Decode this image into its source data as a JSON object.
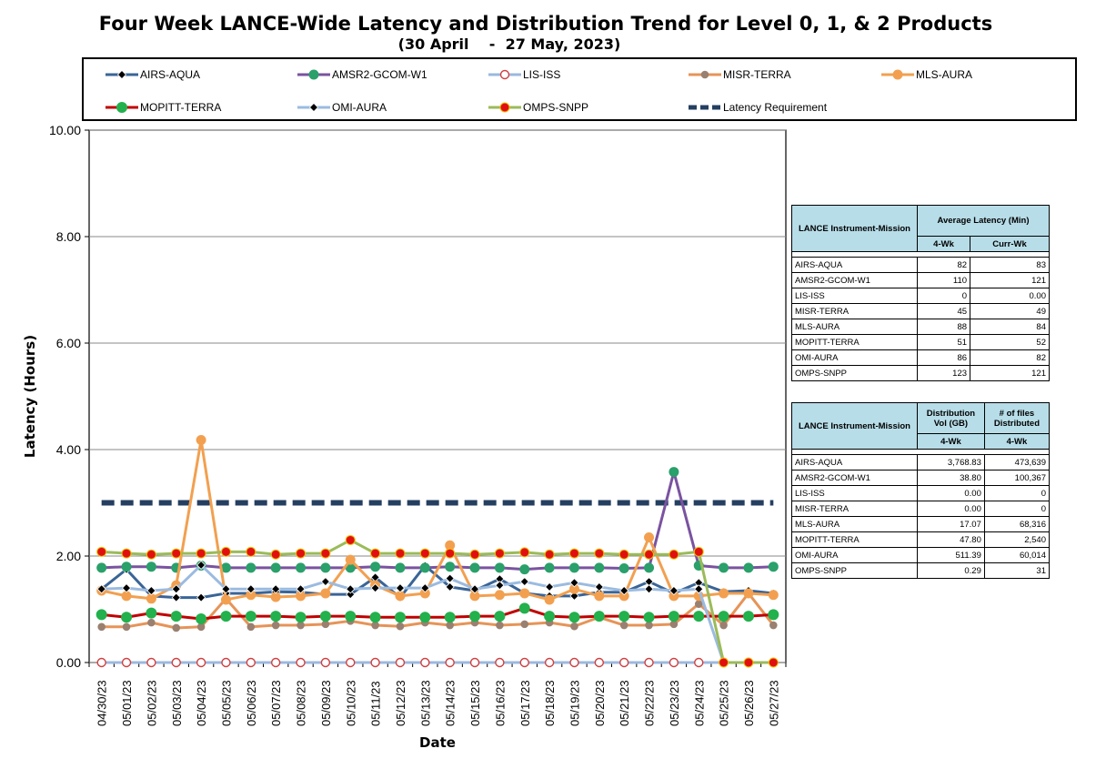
{
  "title": "Four Week LANCE-Wide Latency and Distribution Trend for Level 0, 1, & 2 Products",
  "subtitle": "(30 April    -  27 May, 2023)",
  "chart_data": {
    "type": "line",
    "xlabel": "Date",
    "ylabel": "Latency (Hours)",
    "ylim": [
      0,
      10
    ],
    "yticks": [
      "0.00",
      "2.00",
      "4.00",
      "6.00",
      "8.00",
      "10.00"
    ],
    "grid": true,
    "legend_position": "top",
    "categories": [
      "04/30/23",
      "05/01/23",
      "05/02/23",
      "05/03/23",
      "05/04/23",
      "05/05/23",
      "05/06/23",
      "05/07/23",
      "05/08/23",
      "05/09/23",
      "05/10/23",
      "05/11/23",
      "05/12/23",
      "05/13/23",
      "05/14/23",
      "05/15/23",
      "05/16/23",
      "05/17/23",
      "05/18/23",
      "05/19/23",
      "05/20/23",
      "05/21/23",
      "05/22/23",
      "05/23/23",
      "05/24/23",
      "05/25/23",
      "05/26/23",
      "05/27/23"
    ],
    "series": [
      {
        "name": "AIRS-AQUA",
        "color": "#3a6496",
        "marker": "diamond",
        "values": [
          1.38,
          1.75,
          1.25,
          1.22,
          1.22,
          1.3,
          1.3,
          1.33,
          1.32,
          1.28,
          1.28,
          1.6,
          1.22,
          1.82,
          1.42,
          1.35,
          1.57,
          1.3,
          1.25,
          1.25,
          1.32,
          1.32,
          1.52,
          1.3,
          1.5,
          1.33,
          1.35,
          1.3
        ]
      },
      {
        "name": "AMSR2-GCOM-W1",
        "color": "#7a53a0",
        "marker": "circle",
        "values": [
          1.78,
          1.8,
          1.8,
          1.78,
          1.82,
          1.78,
          1.78,
          1.78,
          1.78,
          1.78,
          1.78,
          1.8,
          1.78,
          1.78,
          1.8,
          1.78,
          1.78,
          1.75,
          1.78,
          1.78,
          1.78,
          1.77,
          1.78,
          3.58,
          1.82,
          1.78,
          1.78,
          1.8
        ]
      },
      {
        "name": "LIS-ISS",
        "color": "#9bb8df",
        "marker": "hollow-circle",
        "values": [
          0,
          0,
          0,
          0,
          0,
          0,
          0,
          0,
          0,
          0,
          0,
          0,
          0,
          0,
          0,
          0,
          0,
          0,
          0,
          0,
          0,
          0,
          0,
          0,
          0,
          0,
          0,
          0
        ]
      },
      {
        "name": "MISR-TERRA",
        "color": "#e69458",
        "marker": "circle",
        "values": [
          0.67,
          0.67,
          0.75,
          0.65,
          0.67,
          1.2,
          0.67,
          0.7,
          0.7,
          0.72,
          0.78,
          0.7,
          0.68,
          0.75,
          0.7,
          0.75,
          0.7,
          0.72,
          0.75,
          0.68,
          0.85,
          0.7,
          0.7,
          0.72,
          1.1,
          0.7,
          1.3,
          0.7
        ]
      },
      {
        "name": "MLS-AURA",
        "color": "#f2a050",
        "marker": "circle",
        "values": [
          1.35,
          1.25,
          1.2,
          1.45,
          4.18,
          1.18,
          1.27,
          1.23,
          1.25,
          1.3,
          1.93,
          1.45,
          1.25,
          1.3,
          2.2,
          1.25,
          1.27,
          1.3,
          1.18,
          1.38,
          1.25,
          1.25,
          2.35,
          1.25,
          1.25,
          1.3,
          1.3,
          1.27
        ]
      },
      {
        "name": "MOPITT-TERRA",
        "color": "#c00000",
        "marker": "circle",
        "values": [
          0.9,
          0.85,
          0.93,
          0.87,
          0.82,
          0.87,
          0.87,
          0.87,
          0.85,
          0.87,
          0.87,
          0.85,
          0.85,
          0.85,
          0.85,
          0.87,
          0.87,
          1.02,
          0.87,
          0.85,
          0.87,
          0.87,
          0.85,
          0.87,
          0.87,
          0.87,
          0.87,
          0.9
        ]
      },
      {
        "name": "OMI-AURA",
        "color": "#9bbbe0",
        "marker": "diamond",
        "values": [
          1.38,
          1.4,
          1.35,
          1.38,
          1.83,
          1.38,
          1.38,
          1.38,
          1.38,
          1.52,
          1.38,
          1.4,
          1.4,
          1.4,
          1.58,
          1.38,
          1.45,
          1.52,
          1.42,
          1.5,
          1.42,
          1.35,
          1.38,
          1.35,
          1.38,
          0,
          0,
          0
        ]
      },
      {
        "name": "OMPS-SNPP",
        "color": "#9bbb59",
        "marker": "circle",
        "values": [
          2.08,
          2.05,
          2.03,
          2.05,
          2.05,
          2.08,
          2.08,
          2.03,
          2.05,
          2.05,
          2.3,
          2.05,
          2.05,
          2.05,
          2.05,
          2.03,
          2.05,
          2.07,
          2.03,
          2.05,
          2.05,
          2.03,
          2.03,
          2.03,
          2.08,
          0,
          0,
          0
        ]
      },
      {
        "name": "Latency Requirement",
        "color": "#243f60",
        "marker": "dash",
        "values": [
          3,
          3,
          3,
          3,
          3,
          3,
          3,
          3,
          3,
          3,
          3,
          3,
          3,
          3,
          3,
          3,
          3,
          3,
          3,
          3,
          3,
          3,
          3,
          3,
          3,
          3,
          3,
          3
        ]
      }
    ]
  },
  "table_latency": {
    "header_col1": "LANCE Instrument-Mission",
    "header_col2": "Average Latency (Min)",
    "sub_4wk": "4-Wk",
    "sub_curr": "Curr-Wk",
    "rows": [
      {
        "name": "AIRS-AQUA",
        "wk4": "82",
        "curr": "83"
      },
      {
        "name": "AMSR2-GCOM-W1",
        "wk4": "110",
        "curr": "121"
      },
      {
        "name": "LIS-ISS",
        "wk4": "0",
        "curr": "0.00"
      },
      {
        "name": "MISR-TERRA",
        "wk4": "45",
        "curr": "49"
      },
      {
        "name": "MLS-AURA",
        "wk4": "88",
        "curr": "84"
      },
      {
        "name": "MOPITT-TERRA",
        "wk4": "51",
        "curr": "52"
      },
      {
        "name": "OMI-AURA",
        "wk4": "86",
        "curr": "82"
      },
      {
        "name": "OMPS-SNPP",
        "wk4": "123",
        "curr": "121"
      }
    ]
  },
  "table_distribution": {
    "header_col1": "LANCE Instrument-Mission",
    "header_col2": "Distribution Vol (GB)",
    "header_col3": "# of files Distributed",
    "sub_a": "4-Wk",
    "sub_b": "4-Wk",
    "rows": [
      {
        "name": "AIRS-AQUA",
        "vol": "3,768.83",
        "files": "473,639"
      },
      {
        "name": "AMSR2-GCOM-W1",
        "vol": "38.80",
        "files": "100,367"
      },
      {
        "name": "LIS-ISS",
        "vol": "0.00",
        "files": "0"
      },
      {
        "name": "MISR-TERRA",
        "vol": "0.00",
        "files": "0"
      },
      {
        "name": "MLS-AURA",
        "vol": "17.07",
        "files": "68,316"
      },
      {
        "name": "MOPITT-TERRA",
        "vol": "47.80",
        "files": "2,540"
      },
      {
        "name": "OMI-AURA",
        "vol": "511.39",
        "files": "60,014"
      },
      {
        "name": "OMPS-SNPP",
        "vol": "0.29",
        "files": "31"
      }
    ]
  }
}
